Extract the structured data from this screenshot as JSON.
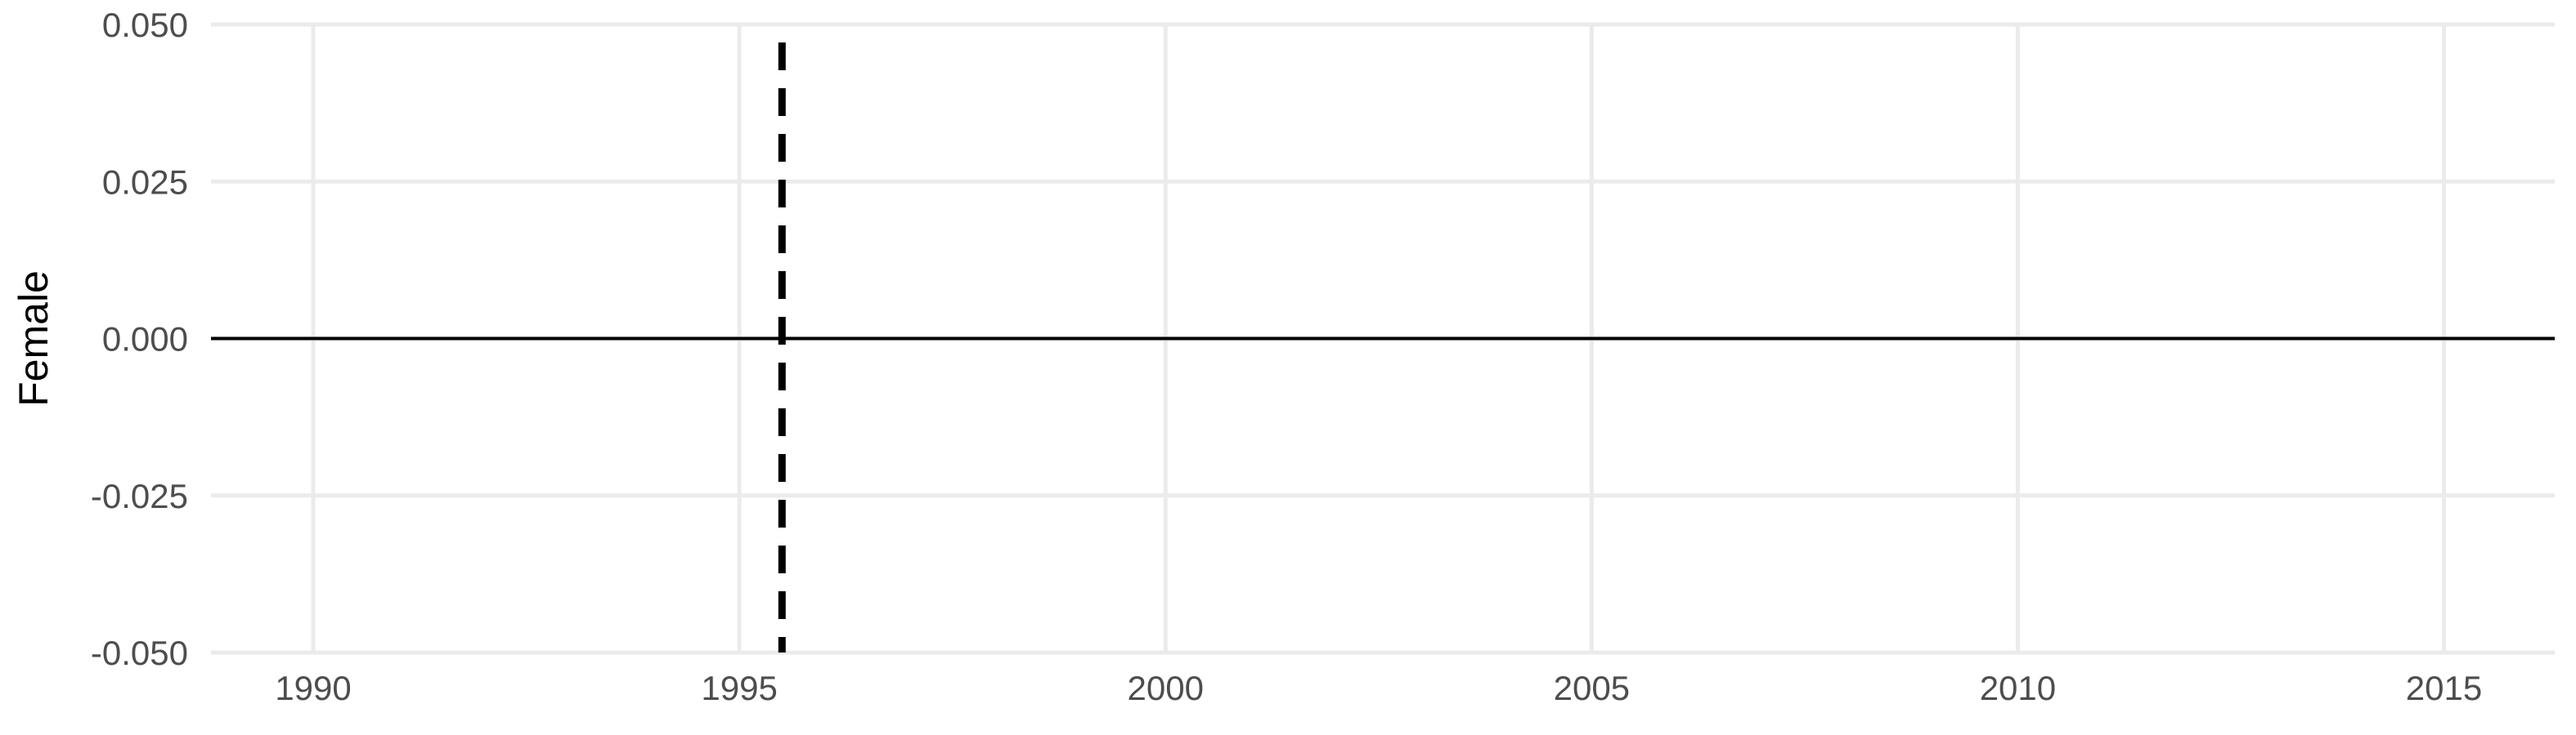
{
  "chart_data": {
    "type": "line",
    "title": "",
    "xlabel": "",
    "ylabel": "Female",
    "xlim": [
      1988.8,
      2016.3
    ],
    "ylim": [
      -0.05,
      0.05
    ],
    "x_ticks": [
      1990,
      1995,
      2000,
      2005,
      2010,
      2015
    ],
    "x_tick_labels": [
      "1990",
      "1995",
      "2000",
      "2005",
      "2010",
      "2015"
    ],
    "y_ticks": [
      0.05,
      0.025,
      0.0,
      -0.025,
      -0.05
    ],
    "y_tick_labels": [
      "0.050",
      "0.025",
      "0.000",
      "-0.025",
      "-0.050"
    ],
    "grid": true,
    "series": [],
    "reference_lines": {
      "horizontal": {
        "y": 0.0,
        "style": "solid",
        "color": "#000000"
      },
      "vertical": {
        "x": 1995.5,
        "style": "dashed",
        "color": "#000000"
      }
    }
  }
}
